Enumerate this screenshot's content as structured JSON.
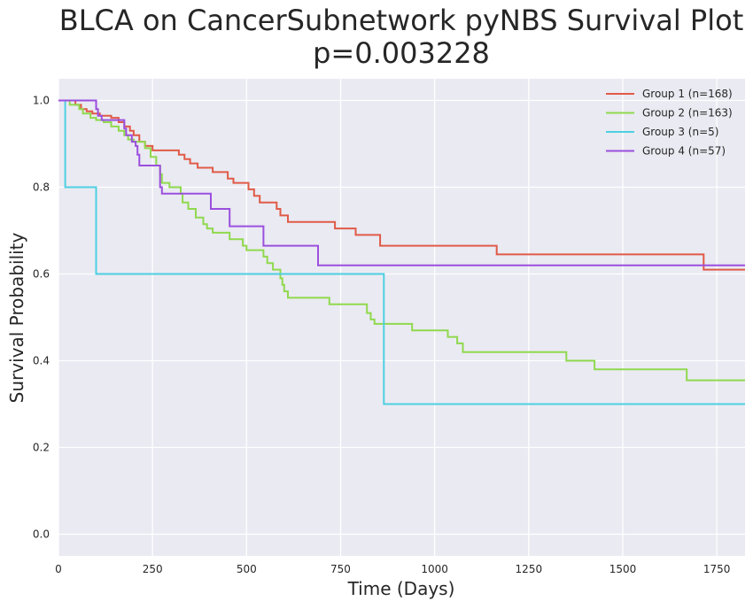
{
  "chart_data": {
    "type": "line",
    "title_line1": "BLCA on CancerSubnetwork pyNBS Survival Plot",
    "title_line2": "p=0.003228",
    "xlabel": "Time (Days)",
    "ylabel": "Survival Probability",
    "xlim": [
      0,
      1825
    ],
    "ylim": [
      -0.05,
      1.05
    ],
    "xticks": [
      0,
      250,
      500,
      750,
      1000,
      1250,
      1500,
      1750
    ],
    "yticks": [
      0.0,
      0.2,
      0.4,
      0.6,
      0.8,
      1.0
    ],
    "ytick_labels": [
      "0.0",
      "0.2",
      "0.4",
      "0.6",
      "0.8",
      "1.0"
    ],
    "grid": true,
    "legend_position": "top-right",
    "step": true,
    "series": [
      {
        "name": "Group 1 (n=168)",
        "color": "#e05a47",
        "points": [
          [
            0,
            1.0
          ],
          [
            45,
            0.99
          ],
          [
            60,
            0.98
          ],
          [
            75,
            0.975
          ],
          [
            90,
            0.97
          ],
          [
            110,
            0.965
          ],
          [
            140,
            0.96
          ],
          [
            160,
            0.95
          ],
          [
            175,
            0.94
          ],
          [
            190,
            0.93
          ],
          [
            200,
            0.92
          ],
          [
            215,
            0.905
          ],
          [
            230,
            0.895
          ],
          [
            250,
            0.885
          ],
          [
            320,
            0.875
          ],
          [
            335,
            0.865
          ],
          [
            350,
            0.855
          ],
          [
            370,
            0.845
          ],
          [
            410,
            0.835
          ],
          [
            450,
            0.82
          ],
          [
            465,
            0.81
          ],
          [
            505,
            0.795
          ],
          [
            520,
            0.78
          ],
          [
            535,
            0.765
          ],
          [
            580,
            0.75
          ],
          [
            590,
            0.735
          ],
          [
            610,
            0.72
          ],
          [
            735,
            0.705
          ],
          [
            790,
            0.69
          ],
          [
            855,
            0.665
          ],
          [
            1165,
            0.645
          ],
          [
            1715,
            0.61
          ],
          [
            1825,
            0.61
          ]
        ]
      },
      {
        "name": "Group 2 (n=163)",
        "color": "#8fd94e",
        "points": [
          [
            0,
            1.0
          ],
          [
            30,
            0.99
          ],
          [
            55,
            0.98
          ],
          [
            65,
            0.97
          ],
          [
            85,
            0.96
          ],
          [
            100,
            0.955
          ],
          [
            120,
            0.95
          ],
          [
            140,
            0.94
          ],
          [
            160,
            0.93
          ],
          [
            175,
            0.92
          ],
          [
            185,
            0.91
          ],
          [
            200,
            0.905
          ],
          [
            230,
            0.89
          ],
          [
            245,
            0.87
          ],
          [
            260,
            0.85
          ],
          [
            270,
            0.83
          ],
          [
            275,
            0.81
          ],
          [
            295,
            0.8
          ],
          [
            325,
            0.785
          ],
          [
            330,
            0.765
          ],
          [
            345,
            0.75
          ],
          [
            365,
            0.73
          ],
          [
            385,
            0.715
          ],
          [
            395,
            0.705
          ],
          [
            410,
            0.695
          ],
          [
            455,
            0.68
          ],
          [
            490,
            0.665
          ],
          [
            500,
            0.655
          ],
          [
            545,
            0.64
          ],
          [
            555,
            0.625
          ],
          [
            570,
            0.61
          ],
          [
            590,
            0.59
          ],
          [
            595,
            0.575
          ],
          [
            600,
            0.56
          ],
          [
            610,
            0.545
          ],
          [
            720,
            0.53
          ],
          [
            820,
            0.51
          ],
          [
            830,
            0.495
          ],
          [
            840,
            0.485
          ],
          [
            940,
            0.47
          ],
          [
            1035,
            0.455
          ],
          [
            1060,
            0.44
          ],
          [
            1075,
            0.42
          ],
          [
            1350,
            0.4
          ],
          [
            1425,
            0.38
          ],
          [
            1670,
            0.355
          ],
          [
            1825,
            0.355
          ]
        ]
      },
      {
        "name": "Group 3 (n=5)",
        "color": "#4dd0e1",
        "points": [
          [
            0,
            1.0
          ],
          [
            18,
            0.8
          ],
          [
            100,
            0.6
          ],
          [
            865,
            0.3
          ],
          [
            1825,
            0.3
          ]
        ]
      },
      {
        "name": "Group 4 (n=57)",
        "color": "#9b4fde",
        "points": [
          [
            0,
            1.0
          ],
          [
            100,
            0.98
          ],
          [
            105,
            0.965
          ],
          [
            115,
            0.955
          ],
          [
            175,
            0.935
          ],
          [
            180,
            0.92
          ],
          [
            195,
            0.905
          ],
          [
            205,
            0.895
          ],
          [
            210,
            0.875
          ],
          [
            215,
            0.85
          ],
          [
            270,
            0.8
          ],
          [
            275,
            0.785
          ],
          [
            405,
            0.75
          ],
          [
            455,
            0.71
          ],
          [
            545,
            0.665
          ],
          [
            690,
            0.62
          ],
          [
            1825,
            0.62
          ]
        ]
      }
    ]
  }
}
